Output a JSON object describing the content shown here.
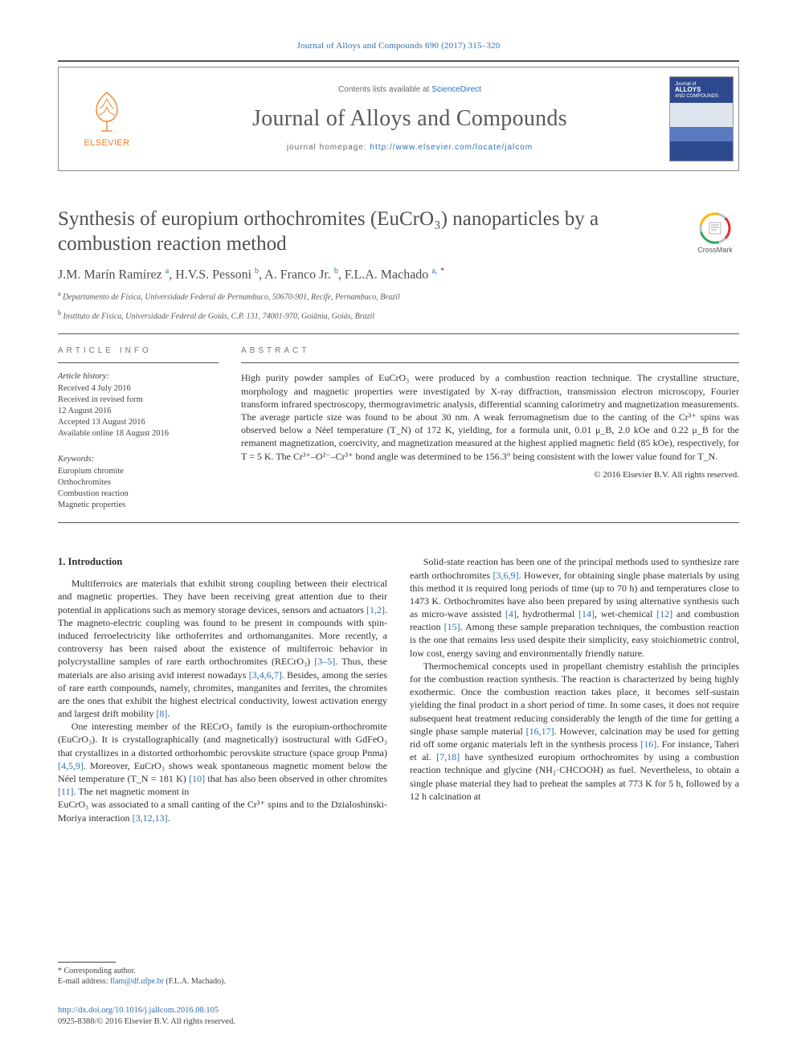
{
  "running_head": "Journal of Alloys and Compounds 690 (2017) 315–320",
  "masthead": {
    "contents_prefix": "Contents lists available at ",
    "contents_link": "ScienceDirect",
    "journal_title": "Journal of Alloys and Compounds",
    "homepage_prefix": "journal homepage: ",
    "homepage_url": "http://www.elsevier.com/locate/jalcom",
    "publisher": "ELSEVIER",
    "cover_label_line1": "Journal of",
    "cover_label_line2": "ALLOYS",
    "cover_label_line3": "AND COMPOUNDS"
  },
  "crossmark_label": "CrossMark",
  "title": "Synthesis of europium orthochromites (EuCrO₃) nanoparticles by a combustion reaction method",
  "authors_html": "J.M. Marín Ramírez <sup>a</sup>, H.V.S. Pessoni <sup>b</sup>, A. Franco Jr. <sup>b</sup>, F.L.A. Machado <sup>a,</sup> <sup class='star'>*</sup>",
  "affiliations": [
    "a Departamento de Física, Universidade Federal de Pernambuco, 50670-901, Recife, Pernambuco, Brazil",
    "b Instituto de Física, Universidade Federal de Goiás, C.P. 131, 74001-970, Goiânia, Goiás, Brazil"
  ],
  "article_info_head": "ARTICLE INFO",
  "abstract_head": "ABSTRACT",
  "history_head": "Article history:",
  "history": [
    "Received 4 July 2016",
    "Received in revised form",
    "12 August 2016",
    "Accepted 13 August 2016",
    "Available online 18 August 2016"
  ],
  "keywords_head": "Keywords:",
  "keywords": [
    "Europium chromite",
    "Orthochromites",
    "Combustion reaction",
    "Magnetic properties"
  ],
  "abstract": "High purity powder samples of EuCrO₃ were produced by a combustion reaction technique. The crystalline structure, morphology and magnetic properties were investigated by X-ray diffraction, transmission electron microscopy, Fourier transform infrared spectroscopy, thermogravimetric analysis, differential scanning calorimetry and magnetization measurements. The average particle size was found to be about 30 nm. A weak ferromagnetism due to the canting of the Cr³⁺ spins was observed below a Néel temperature (T_N) of 172 K, yielding, for a formula unit, 0.01 μ_B, 2.0 kOe and 0.22 μ_B for the remanent magnetization, coercivity, and magnetization measured at the highest applied magnetic field (85 kOe), respectively, for T = 5 K. The Cr³⁺–O²⁻–Cr³⁺ bond angle was determined to be 156.3° being consistent with the lower value found for T_N.",
  "copyright": "© 2016 Elsevier B.V. All rights reserved.",
  "section1_head": "1. Introduction",
  "para1": "Multiferroics are materials that exhibit strong coupling between their electrical and magnetic properties. They have been receiving great attention due to their potential in applications such as memory storage devices, sensors and actuators [1,2]. The magneto-electric coupling was found to be present in compounds with spin-induced ferroelectricity like orthoferrites and orthomanganites. More recently, a controversy has been raised about the existence of multiferroic behavior in polycrystalline samples of rare earth orthochromites (RECrO₃) [3–5]. Thus, these materials are also arising avid interest nowadays [3,4,6,7]. Besides, among the series of rare earth compounds, namely, chromites, manganites and ferrites, the chromites are the ones that exhibit the highest electrical conductivity, lowest activation energy and largest drift mobility [8].",
  "para2": "One interesting member of the RECrO₃ family is the europium-orthochromite (EuCrO₃). It is crystallographically (and magnetically) isostructural with GdFeO₃ that crystallizes in a distorted orthorhombic perovskite structure (space group Pnma) [4,5,9]. Moreover, EuCrO₃ shows weak spontaneous magnetic moment below the Néel temperature (T_N = 181 K) [10] that has also been observed in other chromites [11]. The net magnetic moment in",
  "para3": "EuCrO₃ was associated to a small canting of the Cr³⁺ spins and to the Dzialoshinski-Moriya interaction [3,12,13].",
  "para4": "Solid-state reaction has been one of the principal methods used to synthesize rare earth orthochromites [3,6,9]. However, for obtaining single phase materials by using this method it is required long periods of time (up to 70 h) and temperatures close to 1473 K. Orthochromites have also been prepared by using alternative synthesis such as micro-wave assisted [4], hydrothermal [14], wet-chemical [12] and combustion reaction [15]. Among these sample preparation techniques, the combustion reaction is the one that remains less used despite their simplicity, easy stoichiometric control, low cost, energy saving and environmentally friendly nature.",
  "para5": "Thermochemical concepts used in propellant chemistry establish the principles for the combustion reaction synthesis. The reaction is characterized by being highly exothermic. Once the combustion reaction takes place, it becomes self-sustain yielding the final product in a short period of time. In some cases, it does not require subsequent heat treatment reducing considerably the length of the time for getting a single phase sample material [16,17]. However, calcination may be used for getting rid off some organic materials left in the synthesis process [16]. For instance, Taheri et al. [7,18] have synthesized europium orthochromites by using a combustion reaction technique and glycine (NH₂·CHCOOH) as fuel. Nevertheless, to obtain a single phase material they had to preheat the samples at 773 K for 5 h, followed by a 12 h calcination at",
  "footnote_label": "* Corresponding author.",
  "footnote_email_prefix": "E-mail address: ",
  "footnote_email": "flam@df.ufpe.br",
  "footnote_email_who": " (F.L.A. Machado).",
  "doi_url": "http://dx.doi.org/10.1016/j.jallcom.2016.08.105",
  "issn_line": "0925-8388/© 2016 Elsevier B.V. All rights reserved.",
  "colors": {
    "link": "#2f6fb0",
    "publisher_orange": "#ee7d24",
    "cover_blue": "#2e4a8f",
    "rule": "#555555"
  }
}
